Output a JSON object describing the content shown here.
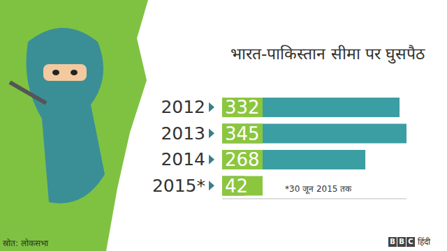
{
  "chart_data": {
    "type": "bar",
    "orientation": "horizontal",
    "title": "भारत-पाकिस्तान सीमा पर घुसपैठ",
    "categories": [
      "2012",
      "2013",
      "2014",
      "2015*"
    ],
    "values": [
      332,
      345,
      268,
      42
    ],
    "color": "#3b9ea3",
    "data_labels": true,
    "tick_labels": "y",
    "grid": false,
    "xlim": [
      0,
      345
    ],
    "annotations": [
      "*30 जून 2015 तक"
    ],
    "source": "स्रोत: लोकसभा",
    "branding": "BBC हिंदी"
  }
}
